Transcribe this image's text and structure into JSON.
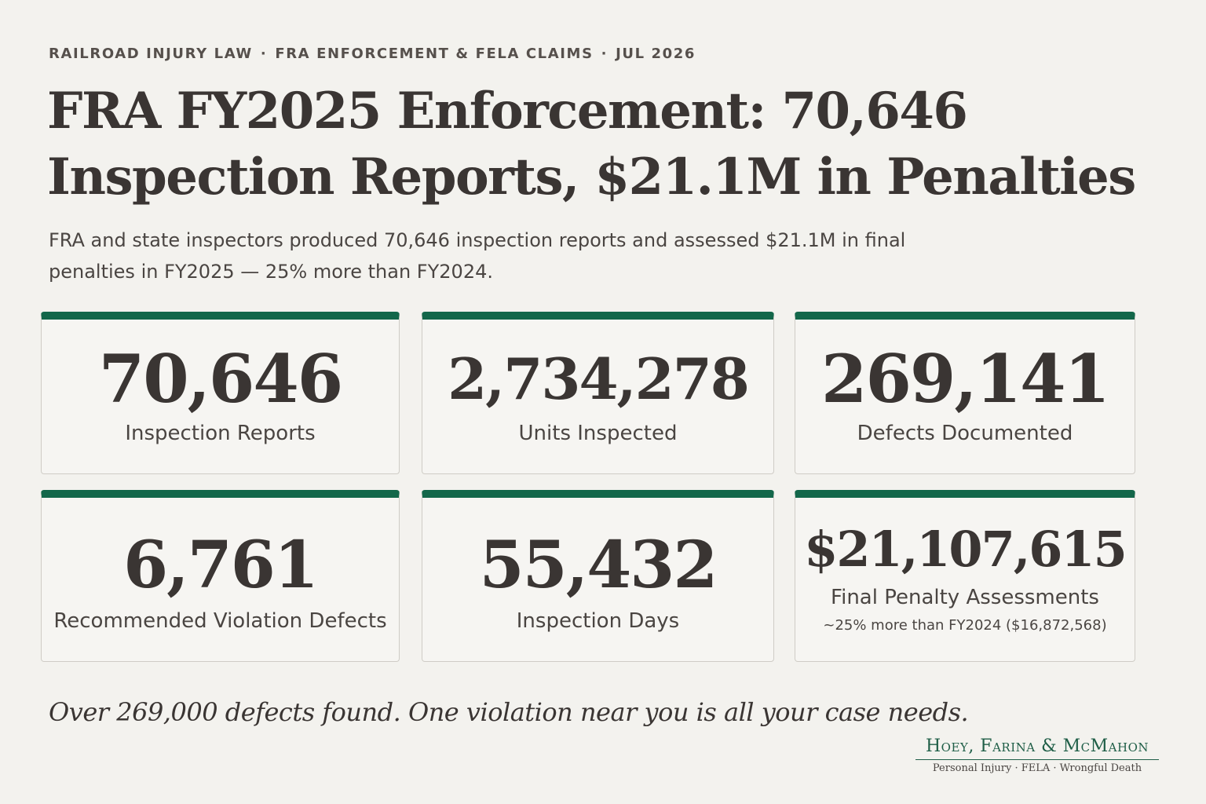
{
  "eyebrow": {
    "part1": "RAILROAD INJURY LAW",
    "separator": "·",
    "part2": "FRA ENFORCEMENT & FELA CLAIMS",
    "part3": "JUL 2026"
  },
  "headline": "FRA FY2025 Enforcement: 70,646 Inspection Reports, $21.1M in Penalties",
  "subhead": "FRA and state inspectors produced 70,646 inspection reports and assessed $21.1M in final penalties in FY2025 — 25% more than FY2024.",
  "stats": [
    {
      "value": "70,646",
      "label": "Inspection Reports"
    },
    {
      "value": "2,734,278",
      "label": "Units Inspected"
    },
    {
      "value": "269,141",
      "label": "Defects Documented"
    },
    {
      "value": "6,761",
      "label": "Recommended Violation Defects"
    },
    {
      "value": "55,432",
      "label": "Inspection Days"
    },
    {
      "value": "$21,107,615",
      "label": "Final Penalty Assessments",
      "note": "~25% more than FY2024 ($16,872,568)"
    }
  ],
  "tagline": "Over 269,000 defects found. One violation near you is all your case needs.",
  "firm": {
    "name": "Hoey, Farina & McMahon",
    "tagline": "Personal Injury · FELA · Wrongful Death"
  },
  "colors": {
    "accent": "#13674a",
    "background": "#f3f2ee",
    "text": "#3a3533"
  }
}
